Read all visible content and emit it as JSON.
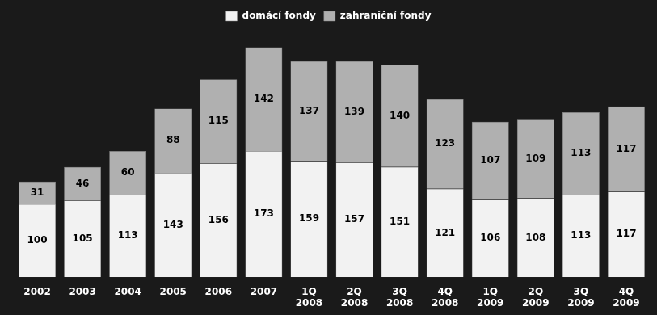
{
  "chart_data": {
    "type": "bar",
    "categories": [
      "2002",
      "2003",
      "2004",
      "2005",
      "2006",
      "2007",
      "1Q\n2008",
      "2Q\n2008",
      "3Q\n2008",
      "4Q\n2008",
      "1Q\n2009",
      "2Q\n2009",
      "3Q\n2009",
      "4Q\n2009"
    ],
    "series": [
      {
        "name": "domácí fondy",
        "color": "#f2f2f2",
        "values": [
          100,
          105,
          113,
          143,
          156,
          173,
          159,
          157,
          151,
          121,
          106,
          108,
          113,
          117
        ]
      },
      {
        "name": "zahraniční fondy",
        "color": "#b0b0b0",
        "values": [
          31,
          46,
          60,
          88,
          115,
          142,
          137,
          139,
          140,
          123,
          107,
          109,
          113,
          117
        ]
      }
    ],
    "stacked": true,
    "ylim": [
      0,
      340
    ],
    "grid": false,
    "legend": "top",
    "data_labels": true,
    "tick_labels": "x"
  }
}
